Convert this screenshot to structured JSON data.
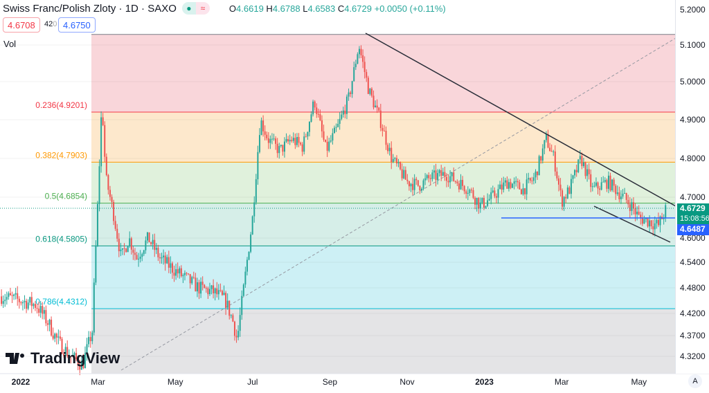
{
  "header": {
    "title": "Swiss Franc/Polish Zloty · 1D · SAXO",
    "open_label": "O",
    "open": "4.6619",
    "high_label": "H",
    "high": "4.6788",
    "low_label": "L",
    "low": "4.6583",
    "close_label": "C",
    "close": "4.6729",
    "change": "+0.0050 (+0.11%)",
    "status_icon": "market-open-dot",
    "wave_icon": "≈"
  },
  "quote": {
    "bid": "4.6708",
    "spread": "42",
    "spread_small": "0",
    "ask": "4.6750"
  },
  "volume_label": "Vol",
  "price_axis": [
    "5.2000",
    "5.1000",
    "5.0000",
    "4.9000",
    "4.8000",
    "4.7000",
    "4.6000",
    "4.5400",
    "4.4800",
    "4.4200",
    "4.3700",
    "4.3200"
  ],
  "time_axis": [
    "2022",
    "Mar",
    "May",
    "Jul",
    "Sep",
    "Nov",
    "2023",
    "Mar",
    "May"
  ],
  "last_price": {
    "price": "4.6729",
    "countdown": "15:08:56"
  },
  "line_price": "4.6487",
  "auto_label": "A",
  "logo": "TradingView",
  "fib_levels": [
    {
      "label": "0.236(4.9201)",
      "price": 4.9201,
      "color": "#f23645"
    },
    {
      "label": "0.382(4.7903)",
      "price": 4.7903,
      "color": "#ff9800"
    },
    {
      "label": "0.5(4.6854)",
      "price": 4.6854,
      "color": "#4caf50"
    },
    {
      "label": "0.618(4.5805)",
      "price": 4.5805,
      "color": "#089981"
    },
    {
      "label": "0.786(4.4312)",
      "price": 4.4312,
      "color": "#00bcd4"
    }
  ],
  "colors": {
    "up": "#26a69a",
    "down": "#ef5350",
    "blue": "#2962ff"
  },
  "chart_data": {
    "type": "candlestick",
    "title": "Swiss Franc/Polish Zloty · 1D · SAXO",
    "xlabel": "",
    "ylabel": "",
    "path_month_price": [
      [
        -0.5,
        4.46
      ],
      [
        0,
        4.45
      ],
      [
        0.4,
        4.44
      ],
      [
        0.7,
        4.4
      ],
      [
        1.0,
        4.35
      ],
      [
        1.3,
        4.32
      ],
      [
        1.6,
        4.3
      ],
      [
        1.85,
        4.38
      ],
      [
        2.0,
        4.7
      ],
      [
        2.1,
        4.95
      ],
      [
        2.2,
        4.75
      ],
      [
        2.4,
        4.66
      ],
      [
        2.6,
        4.55
      ],
      [
        2.8,
        4.6
      ],
      [
        3.0,
        4.55
      ],
      [
        3.3,
        4.6
      ],
      [
        3.6,
        4.55
      ],
      [
        4.0,
        4.52
      ],
      [
        4.3,
        4.5
      ],
      [
        4.6,
        4.48
      ],
      [
        5.0,
        4.47
      ],
      [
        5.3,
        4.45
      ],
      [
        5.5,
        4.4
      ],
      [
        5.6,
        4.36
      ],
      [
        5.8,
        4.5
      ],
      [
        6.0,
        4.65
      ],
      [
        6.2,
        4.9
      ],
      [
        6.4,
        4.85
      ],
      [
        6.7,
        4.82
      ],
      [
        7.0,
        4.85
      ],
      [
        7.3,
        4.83
      ],
      [
        7.6,
        4.95
      ],
      [
        7.9,
        4.82
      ],
      [
        8.2,
        4.88
      ],
      [
        8.5,
        4.96
      ],
      [
        8.75,
        5.1
      ],
      [
        9.0,
        4.98
      ],
      [
        9.3,
        4.9
      ],
      [
        9.6,
        4.8
      ],
      [
        10.0,
        4.74
      ],
      [
        10.3,
        4.73
      ],
      [
        10.6,
        4.75
      ],
      [
        11.0,
        4.76
      ],
      [
        11.3,
        4.74
      ],
      [
        11.6,
        4.72
      ],
      [
        11.9,
        4.68
      ],
      [
        12.2,
        4.7
      ],
      [
        12.6,
        4.74
      ],
      [
        13.0,
        4.72
      ],
      [
        13.3,
        4.75
      ],
      [
        13.6,
        4.85
      ],
      [
        13.8,
        4.8
      ],
      [
        14.0,
        4.69
      ],
      [
        14.2,
        4.72
      ],
      [
        14.5,
        4.8
      ],
      [
        14.8,
        4.72
      ],
      [
        15.2,
        4.74
      ],
      [
        15.5,
        4.71
      ],
      [
        15.8,
        4.68
      ],
      [
        16.0,
        4.65
      ],
      [
        16.3,
        4.64
      ],
      [
        16.5,
        4.63
      ],
      [
        16.7,
        4.67
      ]
    ]
  }
}
